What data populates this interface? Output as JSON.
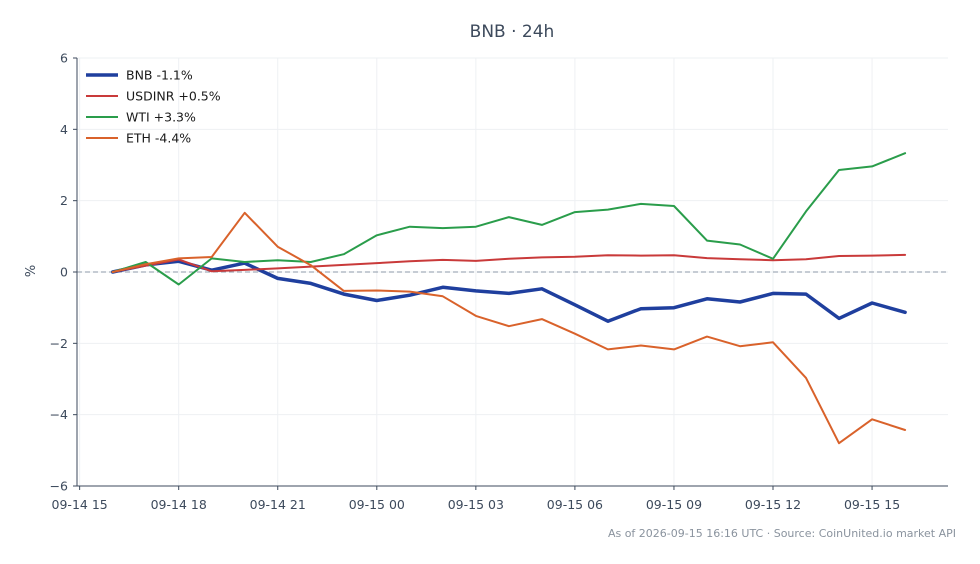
{
  "chart_data": {
    "type": "line",
    "title": "BNB · 24h",
    "ylabel": "%",
    "xlabel": "",
    "ylim": [
      -6,
      6
    ],
    "yticks": [
      -6,
      -4,
      -2,
      0,
      2,
      4,
      6
    ],
    "ytick_labels": [
      "−6",
      "−4",
      "−2",
      "0",
      "2",
      "4",
      "6"
    ],
    "x_hours": [
      15,
      16,
      17,
      18,
      19,
      20,
      21,
      22,
      23,
      24,
      25,
      26,
      27,
      28,
      29,
      30,
      31,
      32,
      33,
      34,
      35,
      36,
      37,
      38,
      39,
      40
    ],
    "xlim": [
      14.92,
      41.3
    ],
    "xticks": [
      15,
      18,
      21,
      24,
      27,
      30,
      33,
      36,
      39
    ],
    "xtick_labels": [
      "09-14 15",
      "09-14 18",
      "09-14 21",
      "09-15 00",
      "09-15 03",
      "09-15 06",
      "09-15 09",
      "09-15 12",
      "09-15 15"
    ],
    "zero_line": true,
    "grid": true,
    "legend_position": "top-left",
    "series": [
      {
        "name": "BNB -1.1%",
        "color": "#1f3f9e",
        "width": 3.5,
        "x": [
          16,
          17,
          18,
          19,
          20,
          21,
          22,
          23,
          24,
          25,
          26,
          27,
          28,
          29,
          30,
          31,
          32,
          33,
          34,
          35,
          36,
          37,
          38,
          39,
          40
        ],
        "values": [
          0.0,
          0.2,
          0.3,
          0.05,
          0.25,
          -0.18,
          -0.32,
          -0.62,
          -0.8,
          -0.65,
          -0.43,
          -0.53,
          -0.6,
          -0.47,
          -0.92,
          -1.38,
          -1.03,
          -1.0,
          -0.75,
          -0.84,
          -0.6,
          -0.62,
          -1.3,
          -0.87,
          -1.13
        ]
      },
      {
        "name": "USDINR +0.5%",
        "color": "#c93a3a",
        "width": 2,
        "x": [
          16,
          17,
          18,
          19,
          20,
          21,
          22,
          23,
          24,
          25,
          26,
          27,
          28,
          29,
          30,
          31,
          32,
          33,
          34,
          35,
          36,
          37,
          38,
          39,
          40
        ],
        "values": [
          0.0,
          0.18,
          0.35,
          0.02,
          0.06,
          0.1,
          0.15,
          0.2,
          0.25,
          0.3,
          0.34,
          0.31,
          0.37,
          0.41,
          0.43,
          0.47,
          0.46,
          0.47,
          0.39,
          0.36,
          0.33,
          0.36,
          0.45,
          0.46,
          0.48
        ]
      },
      {
        "name": "WTI +3.3%",
        "color": "#2a9d4b",
        "width": 2,
        "x": [
          16,
          17,
          18,
          19,
          20,
          21,
          22,
          23,
          24,
          25,
          26,
          27,
          28,
          29,
          30,
          31,
          32,
          33,
          34,
          35,
          36,
          37,
          38,
          39,
          40
        ],
        "values": [
          0.0,
          0.28,
          -0.35,
          0.38,
          0.28,
          0.33,
          0.28,
          0.5,
          1.03,
          1.27,
          1.23,
          1.27,
          1.54,
          1.32,
          1.68,
          1.75,
          1.91,
          1.85,
          0.88,
          0.77,
          0.37,
          1.7,
          2.86,
          2.96,
          3.33
        ]
      },
      {
        "name": "ETH -4.4%",
        "color": "#d9622b",
        "width": 2,
        "x": [
          16,
          17,
          18,
          19,
          20,
          21,
          22,
          23,
          24,
          25,
          26,
          27,
          28,
          29,
          30,
          31,
          32,
          33,
          34,
          35,
          36,
          37,
          38,
          39,
          40
        ],
        "values": [
          0.0,
          0.22,
          0.38,
          0.42,
          1.66,
          0.71,
          0.19,
          -0.53,
          -0.52,
          -0.55,
          -0.68,
          -1.23,
          -1.52,
          -1.32,
          -1.73,
          -2.17,
          -2.06,
          -2.17,
          -1.81,
          -2.08,
          -1.97,
          -2.97,
          -4.8,
          -4.13,
          -4.43
        ]
      }
    ]
  },
  "footer": {
    "note": "As of 2026-09-15 16:16 UTC · Source: CoinUnited.io market API"
  }
}
